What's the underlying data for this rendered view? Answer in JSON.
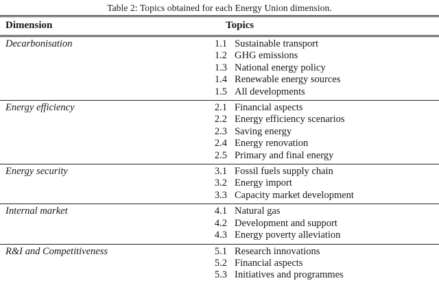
{
  "page": {
    "background": "#ffffff",
    "text_color": "#161616",
    "rule_color": "#232323",
    "bottom_rule_color": "#2c2c2c"
  },
  "table": {
    "caption": "Table 2: Topics obtained for each Energy Union dimension.",
    "headers": {
      "dimension": "Dimension",
      "topics": "Topics"
    },
    "sections": [
      {
        "dimension": "Decarbonisation",
        "topics": [
          {
            "num": "1.1",
            "label": "Sustainable transport"
          },
          {
            "num": "1.2",
            "label": "GHG emissions"
          },
          {
            "num": "1.3",
            "label": "National energy policy"
          },
          {
            "num": "1.4",
            "label": "Renewable energy sources"
          },
          {
            "num": "1.5",
            "label": "All developments"
          }
        ]
      },
      {
        "dimension": "Energy efficiency",
        "topics": [
          {
            "num": "2.1",
            "label": "Financial aspects"
          },
          {
            "num": "2.2",
            "label": "Energy efficiency scenarios"
          },
          {
            "num": "2.3",
            "label": "Saving energy"
          },
          {
            "num": "2.4",
            "label": "Energy renovation"
          },
          {
            "num": "2.5",
            "label": "Primary and final energy"
          }
        ]
      },
      {
        "dimension": "Energy security",
        "topics": [
          {
            "num": "3.1",
            "label": "Fossil fuels supply chain"
          },
          {
            "num": "3.2",
            "label": "Energy import"
          },
          {
            "num": "3.3",
            "label": "Capacity market development"
          }
        ]
      },
      {
        "dimension": "Internal market",
        "topics": [
          {
            "num": "4.1",
            "label": "Natural gas"
          },
          {
            "num": "4.2",
            "label": "Development and support"
          },
          {
            "num": "4.3",
            "label": "Energy poverty alleviation"
          }
        ]
      },
      {
        "dimension": "R&I and Competitiveness",
        "topics": [
          {
            "num": "5.1",
            "label": "Research innovations"
          },
          {
            "num": "5.2",
            "label": "Financial aspects"
          },
          {
            "num": "5.3",
            "label": "Initiatives and programmes"
          }
        ]
      }
    ]
  }
}
